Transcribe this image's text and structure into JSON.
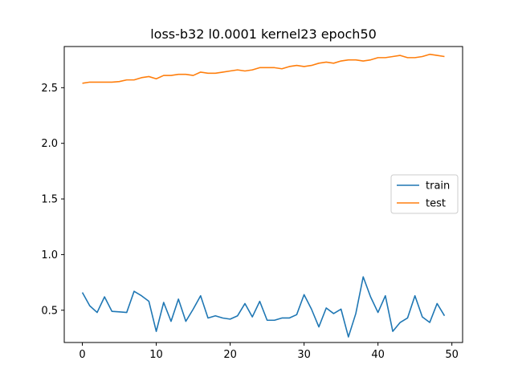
{
  "chart_data": {
    "type": "line",
    "title": "loss-b32 l0.0001 kernel23 epoch50",
    "xlabel": "",
    "ylabel": "",
    "xlim": [
      -2.45,
      51.45
    ],
    "ylim": [
      0.21,
      2.87
    ],
    "xticks": [
      0,
      10,
      20,
      30,
      40,
      50
    ],
    "yticks": [
      0.5,
      1.0,
      1.5,
      2.0,
      2.5
    ],
    "ytick_labels": [
      "0.5",
      "1.0",
      "1.5",
      "2.0",
      "2.5"
    ],
    "grid": false,
    "legend_position": "center-right",
    "x": [
      0,
      1,
      2,
      3,
      4,
      5,
      6,
      7,
      8,
      9,
      10,
      11,
      12,
      13,
      14,
      15,
      16,
      17,
      18,
      19,
      20,
      21,
      22,
      23,
      24,
      25,
      26,
      27,
      28,
      29,
      30,
      31,
      32,
      33,
      34,
      35,
      36,
      37,
      38,
      39,
      40,
      41,
      42,
      43,
      44,
      45,
      46,
      47,
      48,
      49
    ],
    "series": [
      {
        "name": "train",
        "color": "#1f77b4",
        "values": [
          0.66,
          0.54,
          0.48,
          0.62,
          0.49,
          0.485,
          0.48,
          0.67,
          0.63,
          0.58,
          0.31,
          0.57,
          0.4,
          0.6,
          0.4,
          0.51,
          0.63,
          0.43,
          0.45,
          0.43,
          0.42,
          0.45,
          0.56,
          0.44,
          0.58,
          0.41,
          0.41,
          0.43,
          0.43,
          0.46,
          0.64,
          0.51,
          0.35,
          0.52,
          0.47,
          0.51,
          0.26,
          0.47,
          0.8,
          0.62,
          0.48,
          0.63,
          0.31,
          0.39,
          0.43,
          0.63,
          0.44,
          0.39,
          0.56,
          0.45
        ]
      },
      {
        "name": "test",
        "color": "#ff7f0e",
        "values": [
          2.54,
          2.55,
          2.55,
          2.55,
          2.55,
          2.555,
          2.57,
          2.57,
          2.59,
          2.6,
          2.58,
          2.61,
          2.61,
          2.62,
          2.62,
          2.61,
          2.64,
          2.63,
          2.63,
          2.64,
          2.65,
          2.66,
          2.65,
          2.66,
          2.68,
          2.68,
          2.68,
          2.67,
          2.69,
          2.7,
          2.69,
          2.7,
          2.72,
          2.73,
          2.72,
          2.74,
          2.75,
          2.75,
          2.74,
          2.75,
          2.77,
          2.77,
          2.78,
          2.79,
          2.77,
          2.77,
          2.78,
          2.8,
          2.79,
          2.78
        ]
      }
    ]
  }
}
